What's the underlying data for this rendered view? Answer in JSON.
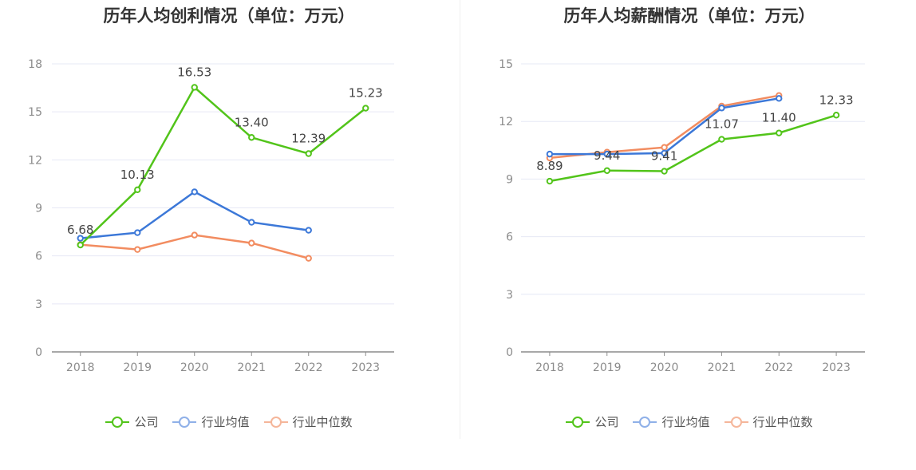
{
  "legend": {
    "company": "公司",
    "industry_avg": "行业均值",
    "industry_median": "行业中位数"
  },
  "colors": {
    "company": "#52c41a",
    "industry_avg": "#3c78d8",
    "industry_median": "#f28c60",
    "legend_company": "#52c41a",
    "legend_avg": "#8fb0e8",
    "legend_median": "#f5b69a"
  },
  "chart_data": [
    {
      "type": "line",
      "title": "历年人均创利情况（单位：万元）",
      "categories": [
        "2018",
        "2019",
        "2020",
        "2021",
        "2022",
        "2023"
      ],
      "ylim": [
        0,
        18
      ],
      "yticks": [
        0,
        3,
        6,
        9,
        12,
        15,
        18
      ],
      "grid": true,
      "legend_position": "bottom",
      "series": [
        {
          "name": "公司",
          "key": "company",
          "values": [
            6.68,
            10.13,
            16.53,
            13.4,
            12.39,
            15.23
          ],
          "labels": [
            "6.68",
            "10.13",
            "16.53",
            "13.40",
            "12.39",
            "15.23"
          ]
        },
        {
          "name": "行业均值",
          "key": "industry_avg",
          "values": [
            7.1,
            7.45,
            10.0,
            8.1,
            7.6,
            null
          ]
        },
        {
          "name": "行业中位数",
          "key": "industry_median",
          "values": [
            6.7,
            6.4,
            7.3,
            6.8,
            5.85,
            null
          ]
        }
      ]
    },
    {
      "type": "line",
      "title": "历年人均薪酬情况（单位：万元）",
      "categories": [
        "2018",
        "2019",
        "2020",
        "2021",
        "2022",
        "2023"
      ],
      "ylim": [
        0,
        15
      ],
      "yticks": [
        0,
        3,
        6,
        9,
        12,
        15
      ],
      "grid": true,
      "legend_position": "bottom",
      "series": [
        {
          "name": "公司",
          "key": "company",
          "values": [
            8.89,
            9.44,
            9.41,
            11.07,
            11.4,
            12.33
          ],
          "labels": [
            "8.89",
            "9.44",
            "9.41",
            "11.07",
            "11.40",
            "12.33"
          ]
        },
        {
          "name": "行业均值",
          "key": "industry_avg",
          "values": [
            10.3,
            10.3,
            10.35,
            12.7,
            13.2,
            null
          ]
        },
        {
          "name": "行业中位数",
          "key": "industry_median",
          "values": [
            10.1,
            10.4,
            10.65,
            12.8,
            13.35,
            null
          ]
        }
      ]
    }
  ]
}
